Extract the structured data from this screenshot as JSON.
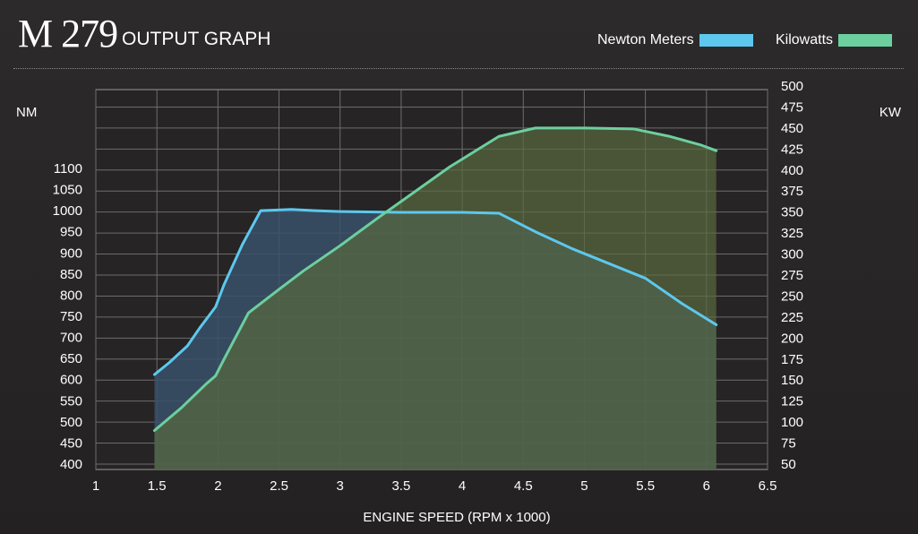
{
  "title": {
    "model": "M 279",
    "subtitle": "OUTPUT GRAPH"
  },
  "legend": [
    {
      "label": "Newton Meters",
      "color": "#5cc8ee"
    },
    {
      "label": "Kilowatts",
      "color": "#6ccf9e"
    }
  ],
  "chart_data": {
    "type": "area",
    "xlabel": "ENGINE SPEED (RPM x 1000)",
    "ylabel_left": "NM",
    "ylabel_right": "KW",
    "xlim": [
      1,
      6.5
    ],
    "ylim_left": [
      400,
      1100
    ],
    "ylim_right": [
      50,
      500
    ],
    "x_ticks": [
      "1",
      "1.5",
      "2",
      "2.5",
      "3",
      "3.5",
      "4",
      "4.5",
      "5",
      "5.5",
      "6",
      "6.5"
    ],
    "y_left_ticks": [
      "400",
      "450",
      "500",
      "550",
      "600",
      "650",
      "700",
      "750",
      "800",
      "850",
      "900",
      "950",
      "1000",
      "1050",
      "1100"
    ],
    "y_right_ticks": [
      "50",
      "75",
      "100",
      "125",
      "150",
      "175",
      "200",
      "225",
      "250",
      "275",
      "300",
      "325",
      "350",
      "375",
      "400",
      "425",
      "450",
      "475",
      "500"
    ],
    "grid": true,
    "series": [
      {
        "name": "Newton Meters",
        "axis": "left",
        "color": "#5cc8ee",
        "fill": "#38506a",
        "points": [
          [
            1.48,
            612
          ],
          [
            1.6,
            640
          ],
          [
            1.75,
            680
          ],
          [
            1.85,
            722
          ],
          [
            1.98,
            772
          ],
          [
            2.05,
            825
          ],
          [
            2.2,
            920
          ],
          [
            2.35,
            1000
          ],
          [
            2.6,
            1003
          ],
          [
            2.8,
            1000
          ],
          [
            3.0,
            998
          ],
          [
            3.5,
            996
          ],
          [
            4.0,
            996
          ],
          [
            4.3,
            994
          ],
          [
            4.6,
            950
          ],
          [
            4.9,
            910
          ],
          [
            5.2,
            875
          ],
          [
            5.5,
            840
          ],
          [
            5.8,
            780
          ],
          [
            6.08,
            730
          ]
        ]
      },
      {
        "name": "Kilowatts",
        "axis": "right",
        "color": "#6ccf9e",
        "fill": "#5a6a3e",
        "points": [
          [
            1.48,
            90
          ],
          [
            1.7,
            117
          ],
          [
            1.9,
            145
          ],
          [
            1.98,
            155
          ],
          [
            2.05,
            175
          ],
          [
            2.25,
            230
          ],
          [
            2.5,
            258
          ],
          [
            2.7,
            280
          ],
          [
            3.0,
            310
          ],
          [
            3.3,
            342
          ],
          [
            3.6,
            373
          ],
          [
            3.9,
            404
          ],
          [
            4.1,
            422
          ],
          [
            4.3,
            440
          ],
          [
            4.6,
            450
          ],
          [
            5.0,
            450
          ],
          [
            5.4,
            449
          ],
          [
            5.7,
            440
          ],
          [
            5.95,
            430
          ],
          [
            6.08,
            423
          ]
        ]
      }
    ]
  }
}
